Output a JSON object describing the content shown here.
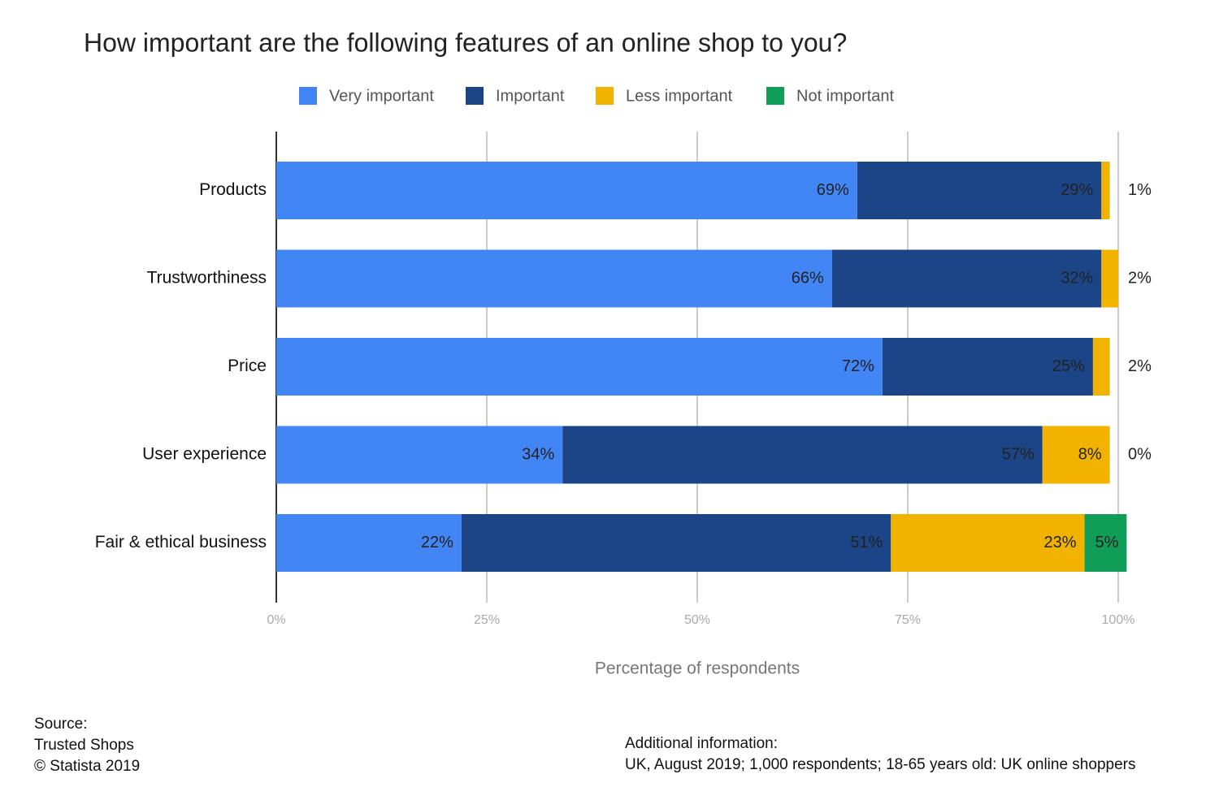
{
  "chart_data": {
    "type": "stacked-bar",
    "title": "How important are the following features of an online shop to you?",
    "categories": [
      "Products",
      "Trustworthiness",
      "Price",
      "User experience",
      "Fair & ethical business"
    ],
    "series": [
      {
        "name": "Very important",
        "color": "#4285f4",
        "values": [
          69,
          66,
          72,
          34,
          22
        ],
        "value_labels": [
          "69%",
          "66%",
          "72%",
          "34%",
          "22%"
        ]
      },
      {
        "name": "Important",
        "color": "#1c4587",
        "values": [
          29,
          32,
          25,
          57,
          51
        ],
        "value_labels": [
          "29%",
          "32%",
          "25%",
          "57%",
          "51%"
        ]
      },
      {
        "name": "Less important",
        "color": "#f1b300",
        "values": [
          1,
          2,
          2,
          8,
          23
        ],
        "value_labels": [
          "1%",
          "2%",
          "2%",
          "8%",
          "23%"
        ]
      },
      {
        "name": "Not important",
        "color": "#0f9d58",
        "values": [
          null,
          null,
          null,
          0,
          5
        ],
        "value_labels": [
          null,
          null,
          null,
          "0%",
          "5%"
        ]
      }
    ],
    "xlim": [
      0,
      100
    ],
    "xticks": [
      {
        "value": 0,
        "label": "0%"
      },
      {
        "value": 25,
        "label": "25%"
      },
      {
        "value": 50,
        "label": "50%"
      },
      {
        "value": 75,
        "label": "75%"
      },
      {
        "value": 100,
        "label": "100%"
      }
    ],
    "xlabel": "Percentage of respondents",
    "grid": true,
    "legend": "top"
  },
  "footer": {
    "source": [
      "Source:",
      "Trusted Shops",
      "© Statista 2019"
    ],
    "additional": [
      "Additional information:",
      "UK, August 2019; 1,000 respondents; 18-65 years old: UK online shoppers"
    ]
  }
}
